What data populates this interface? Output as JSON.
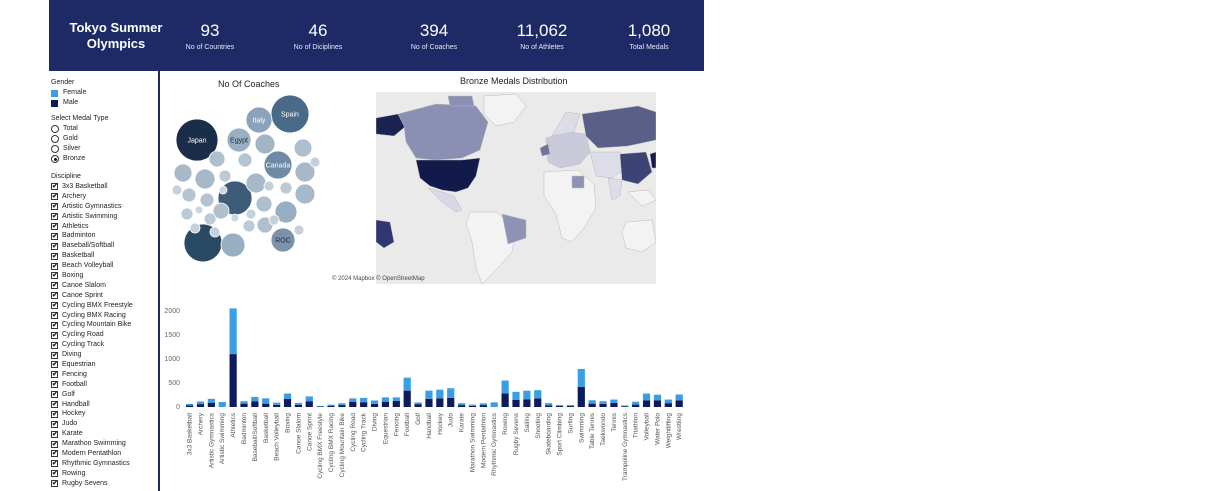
{
  "header": {
    "title_line1": "Tokyo Summer",
    "title_line2": "Olympics",
    "kpis": [
      {
        "value": "93",
        "label": "No of Countries"
      },
      {
        "value": "46",
        "label": "No of Diciplines"
      },
      {
        "value": "394",
        "label": "No of Coaches"
      },
      {
        "value": "11,062",
        "label": "No of Athletes"
      },
      {
        "value": "1,080",
        "label": "Total Medals"
      }
    ]
  },
  "sidebar": {
    "gender_title": "Gender",
    "gender_items": [
      {
        "label": "Female",
        "color": "#3a9ee4"
      },
      {
        "label": "Male",
        "color": "#0d1a5c"
      }
    ],
    "medal_title": "Select Medal Type",
    "medal_options": [
      "Total",
      "Gold",
      "Silver",
      "Bronze"
    ],
    "medal_selected": "Bronze",
    "discipline_title": "Discipline",
    "disciplines": [
      "3x3 Basketball",
      "Archery",
      "Artistic Gymnastics",
      "Artistic Swimming",
      "Athletics",
      "Badminton",
      "Baseball/Softball",
      "Basketball",
      "Beach Volleyball",
      "Boxing",
      "Canoe Slalom",
      "Canoe Sprint",
      "Cycling BMX Freestyle",
      "Cycling BMX Racing",
      "Cycling Mountain Bike",
      "Cycling Road",
      "Cycling Track",
      "Diving",
      "Equestrian",
      "Fencing",
      "Football",
      "Golf",
      "Handball",
      "Hockey",
      "Judo",
      "Karate",
      "Marathon Swimming",
      "Modern Pentathlon",
      "Rhythmic Gymnastics",
      "Rowing",
      "Rugby Sevens"
    ]
  },
  "bubble_chart": {
    "title": "No Of Coaches",
    "labels": [
      "Japan",
      "Spain",
      "Italy",
      "Egypt",
      "Canada",
      "ROC"
    ]
  },
  "map": {
    "title": "Bronze Medals Distribution",
    "credit": "© 2024 Mapbox © OpenStreetMap"
  },
  "chart_data": {
    "type": "bar",
    "stacked": true,
    "categories": [
      "3x3 Basketball",
      "Archery",
      "Artistic Gymnastics",
      "Artistic Swimming",
      "Athletics",
      "Badminton",
      "Baseball/Softball",
      "Basketball",
      "Beach Volleyball",
      "Boxing",
      "Canoe Slalom",
      "Canoe Sprint",
      "Cycling BMX Freestyle",
      "Cycling BMX Racing",
      "Cycling Mountain Bike",
      "Cycling Road",
      "Cycling Track",
      "Diving",
      "Equestrian",
      "Fencing",
      "Football",
      "Golf",
      "Handball",
      "Hockey",
      "Judo",
      "Karate",
      "Marathon Swimming",
      "Modern Pentathlon",
      "Rhythmic Gymnastics",
      "Rowing",
      "Rugby Sevens",
      "Sailing",
      "Shooting",
      "Skateboarding",
      "Sport Climbing",
      "Surfing",
      "Swimming",
      "Table Tennis",
      "Taekwondo",
      "Tennis",
      "Trampoline Gymnastics",
      "Triathlon",
      "Volleyball",
      "Water Polo",
      "Weightlifting",
      "Wrestling"
    ],
    "series": [
      {
        "name": "Male",
        "color": "#0d1a5c",
        "values": [
          32,
          60,
          90,
          0,
          1100,
          70,
          120,
          70,
          45,
          170,
          45,
          120,
          10,
          25,
          40,
          110,
          100,
          65,
          110,
          125,
          340,
          60,
          170,
          180,
          190,
          40,
          25,
          40,
          0,
          280,
          150,
          160,
          180,
          35,
          20,
          20,
          420,
          70,
          65,
          85,
          16,
          50,
          140,
          140,
          80,
          140
        ]
      },
      {
        "name": "Female",
        "color": "#3a9ee4",
        "values": [
          32,
          55,
          80,
          104,
          950,
          50,
          90,
          110,
          45,
          110,
          40,
          100,
          9,
          25,
          38,
          70,
          90,
          70,
          90,
          75,
          270,
          35,
          170,
          180,
          200,
          40,
          25,
          36,
          96,
          270,
          165,
          180,
          170,
          45,
          20,
          20,
          370,
          70,
          55,
          70,
          16,
          60,
          140,
          115,
          75,
          120
        ]
      }
    ],
    "yticks": [
      0,
      500,
      1000,
      1500,
      2000
    ],
    "ylim": [
      0,
      2100
    ],
    "legend": "none"
  }
}
